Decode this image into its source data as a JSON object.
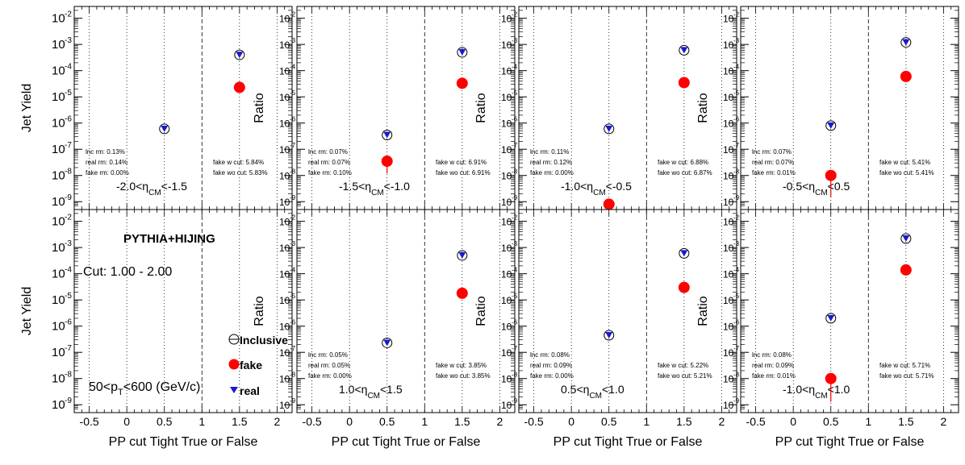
{
  "chart_data": {
    "type": "scatter",
    "log_y": true,
    "xlim": [
      -0.7,
      2.2
    ],
    "x_ticks": [
      "-0.5",
      "0",
      "0.5",
      "1",
      "1.5",
      "2"
    ],
    "y_tick_labels": [
      "10",
      "10",
      "10",
      "10",
      "10",
      "10",
      "10",
      "10"
    ],
    "y_tick_exponents": [
      "-9",
      "-8",
      "-7",
      "-6",
      "-5",
      "-4",
      "-3",
      "-2"
    ],
    "xlabel": "PP cut Tight True or False",
    "legend": {
      "title": "PYTHIA+HIJING",
      "cut": "Cut: 1.00 - 2.00",
      "pt_range": "50<p",
      "pt_sub": "T",
      "pt_rest": "<600 (GeV/c)",
      "entries": [
        "Inclusive",
        "fake",
        "real"
      ]
    },
    "panels": [
      {
        "row": 0,
        "col": 0,
        "ylabel": "Jet Yield",
        "eta": {
          "pre": "-2.0<η",
          "sub": "CM",
          "post": "<-1.5"
        },
        "stats_left": [
          "lnc rm: 0.13%",
          "real rm: 0.14%",
          "fake rm: 0.00%"
        ],
        "stats_right": [
          "fake w cut: 5.84%",
          "fake wo cut: 5.83%"
        ],
        "inclusive": [
          {
            "x": 0.5,
            "y": 6e-07
          },
          {
            "x": 1.5,
            "y": 0.0004
          }
        ],
        "real": [
          {
            "x": 0.5,
            "y": 6e-07
          },
          {
            "x": 1.5,
            "y": 0.0004
          }
        ],
        "fake": [
          {
            "x": 1.5,
            "y": 2.3e-05
          }
        ]
      },
      {
        "row": 0,
        "col": 1,
        "ylabel": "Ratio",
        "eta": {
          "pre": "-1.5<η",
          "sub": "CM",
          "post": "<-1.0"
        },
        "stats_left": [
          "lnc rm: 0.07%",
          "real rm: 0.07%",
          "fake rm: 0.10%"
        ],
        "stats_right": [
          "fake w cut: 6.91%",
          "fake wo cut: 6.91%"
        ],
        "inclusive": [
          {
            "x": 0.5,
            "y": 3.5e-07
          },
          {
            "x": 1.5,
            "y": 0.0005
          }
        ],
        "real": [
          {
            "x": 0.5,
            "y": 3.5e-07
          },
          {
            "x": 1.5,
            "y": 0.0005
          }
        ],
        "fake": [
          {
            "x": 0.5,
            "y": 3.5e-08,
            "err_lo": 1.2e-08
          },
          {
            "x": 1.5,
            "y": 3.3e-05
          }
        ]
      },
      {
        "row": 0,
        "col": 2,
        "ylabel": "Ratio",
        "eta": {
          "pre": "-1.0<η",
          "sub": "CM",
          "post": "<-0.5"
        },
        "stats_left": [
          "lnc rm: 0.11%",
          "real rm: 0.12%",
          "fake rm: 0.00%"
        ],
        "stats_right": [
          "fake w cut: 6.88%",
          "fake wo cut: 6.87%"
        ],
        "inclusive": [
          {
            "x": 0.5,
            "y": 6e-07
          },
          {
            "x": 1.5,
            "y": 0.0006
          }
        ],
        "real": [
          {
            "x": 0.5,
            "y": 6e-07
          },
          {
            "x": 1.5,
            "y": 0.0006
          }
        ],
        "fake": [
          {
            "x": 0.5,
            "y": 8e-10
          },
          {
            "x": 1.5,
            "y": 3.5e-05
          }
        ]
      },
      {
        "row": 0,
        "col": 3,
        "ylabel": "Ratio",
        "eta": {
          "pre": "-0.5<η",
          "sub": "CM",
          "post": "<0.5"
        },
        "stats_left": [
          "lnc rm: 0.07%",
          "real rm: 0.07%",
          "fake rm: 0.01%"
        ],
        "stats_right": [
          "fake w cut: 5.41%",
          "fake wo cut: 5.41%"
        ],
        "inclusive": [
          {
            "x": 0.5,
            "y": 8e-07
          },
          {
            "x": 1.5,
            "y": 0.0012
          }
        ],
        "real": [
          {
            "x": 0.5,
            "y": 8e-07
          },
          {
            "x": 1.5,
            "y": 0.0012
          }
        ],
        "fake": [
          {
            "x": 0.5,
            "y": 1e-08,
            "err_lo": 1.5e-09
          },
          {
            "x": 1.5,
            "y": 6e-05
          }
        ]
      },
      {
        "row": 1,
        "col": 0,
        "ylabel": "Jet Yield",
        "eta": null,
        "stats_left": [],
        "stats_right": [],
        "inclusive": [],
        "real": [],
        "fake": []
      },
      {
        "row": 1,
        "col": 1,
        "ylabel": "Ratio",
        "eta": {
          "pre": "1.0<η",
          "sub": "CM",
          "post": "<1.5"
        },
        "stats_left": [
          "lnc rm: 0.05%",
          "real rm: 0.05%",
          "fake rm: 0.00%"
        ],
        "stats_right": [
          "fake w cut: 3.85%",
          "fake wo cut: 3.85%"
        ],
        "inclusive": [
          {
            "x": 0.5,
            "y": 2.3e-07
          },
          {
            "x": 1.5,
            "y": 0.0005
          }
        ],
        "real": [
          {
            "x": 0.5,
            "y": 2.3e-07
          },
          {
            "x": 1.5,
            "y": 0.0005
          }
        ],
        "fake": [
          {
            "x": 1.5,
            "y": 1.8e-05
          }
        ]
      },
      {
        "row": 1,
        "col": 2,
        "ylabel": "Ratio",
        "eta": {
          "pre": "0.5<η",
          "sub": "CM",
          "post": "<1.0"
        },
        "stats_left": [
          "lnc rm: 0.08%",
          "real rm: 0.09%",
          "fake rm: 0.00%"
        ],
        "stats_right": [
          "fake w cut: 5.22%",
          "fake wo cut: 5.21%"
        ],
        "inclusive": [
          {
            "x": 0.5,
            "y": 4.5e-07
          },
          {
            "x": 1.5,
            "y": 0.0006
          }
        ],
        "real": [
          {
            "x": 0.5,
            "y": 4.5e-07
          },
          {
            "x": 1.5,
            "y": 0.0006
          }
        ],
        "fake": [
          {
            "x": 1.5,
            "y": 3e-05
          }
        ]
      },
      {
        "row": 1,
        "col": 3,
        "ylabel": "Ratio",
        "eta": {
          "pre": "-1.0<η",
          "sub": "CM",
          "post": "<1.0"
        },
        "stats_left": [
          "lnc rm: 0.08%",
          "real rm: 0.09%",
          "fake rm: 0.01%"
        ],
        "stats_right": [
          "fake w cut: 5.71%",
          "fake wo cut: 5.71%"
        ],
        "inclusive": [
          {
            "x": 0.5,
            "y": 2e-06
          },
          {
            "x": 1.5,
            "y": 0.0022
          }
        ],
        "real": [
          {
            "x": 0.5,
            "y": 2e-06
          },
          {
            "x": 1.5,
            "y": 0.0022
          }
        ],
        "fake": [
          {
            "x": 0.5,
            "y": 1e-08,
            "err_lo": 1.3e-09
          },
          {
            "x": 1.5,
            "y": 0.00014
          }
        ]
      }
    ]
  }
}
